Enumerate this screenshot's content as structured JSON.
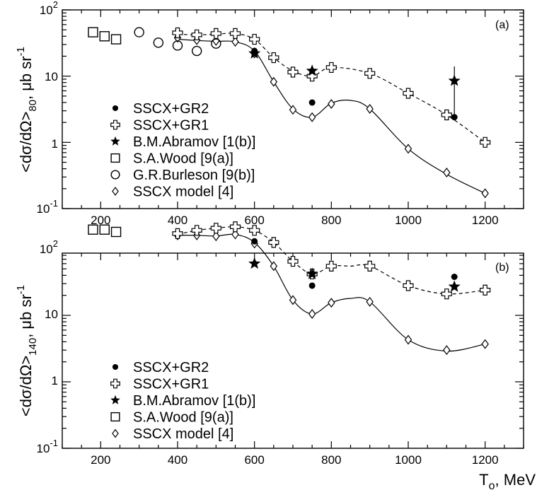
{
  "chart_data": [
    {
      "type": "scatter",
      "panel_label": "(a)",
      "ylabel": "<dσ/dΩ>",
      "ylabel_subscript": "80",
      "ylabel_unit": ", μb sr",
      "ylabel_unit_superscript": "-1",
      "xlabel": "",
      "xlim": [
        100,
        1300
      ],
      "ylim": [
        0.1,
        100
      ],
      "yscale": "log",
      "x_ticks": [
        "200",
        "400",
        "600",
        "800",
        "1000",
        "1200"
      ],
      "y_ticks": [
        {
          "base": "10",
          "exp": "-1"
        },
        {
          "base": "1",
          "exp": ""
        },
        {
          "base": "10",
          "exp": ""
        },
        {
          "base": "10",
          "exp": "2"
        }
      ],
      "grid": false,
      "legend_position": "left",
      "series": [
        {
          "name": "SSCX+GR2",
          "marker": "filled-circle",
          "points": [
            [
              600,
              24
            ],
            [
              750,
              4
            ],
            [
              1120,
              2.4
            ]
          ]
        },
        {
          "name": "SSCX+GR1",
          "marker": "open-cross",
          "points": [
            [
              400,
              45
            ],
            [
              450,
              42
            ],
            [
              500,
              44
            ],
            [
              550,
              44
            ],
            [
              600,
              36
            ],
            [
              650,
              19
            ],
            [
              700,
              11.5
            ],
            [
              750,
              10
            ],
            [
              800,
              13.5
            ],
            [
              900,
              11
            ],
            [
              1000,
              5.5
            ],
            [
              1100,
              2.6
            ],
            [
              1200,
              1.0
            ]
          ]
        },
        {
          "name": "B.M.Abramov [1(b)]",
          "marker": "star",
          "points": [
            [
              600,
              22
            ],
            [
              750,
              12
            ],
            [
              1120,
              8.5
            ]
          ],
          "error_bars": [
            null,
            null,
            [
              2.4,
              14
            ]
          ]
        },
        {
          "name": "S.A.Wood [9(a)]",
          "marker": "open-square",
          "points": [
            [
              180,
              46
            ],
            [
              210,
              40
            ],
            [
              240,
              36
            ]
          ]
        },
        {
          "name": "G.R.Burleson [9(b)]",
          "marker": "open-circle",
          "points": [
            [
              300,
              46
            ],
            [
              350,
              32
            ],
            [
              400,
              29
            ],
            [
              450,
              24
            ],
            [
              500,
              31
            ]
          ]
        },
        {
          "name": "SSCX model [4]",
          "marker": "open-diamond",
          "points": [
            [
              400,
              38
            ],
            [
              450,
              35
            ],
            [
              500,
              34
            ],
            [
              550,
              33
            ],
            [
              600,
              22
            ],
            [
              650,
              8.2
            ],
            [
              700,
              3.1
            ],
            [
              750,
              2.4
            ],
            [
              800,
              3.8
            ],
            [
              900,
              3.2
            ],
            [
              1000,
              0.8
            ],
            [
              1100,
              0.35
            ],
            [
              1200,
              0.17
            ]
          ]
        }
      ],
      "curves": [
        {
          "style": "solid",
          "points": [
            [
              400,
              36
            ],
            [
              450,
              34.5
            ],
            [
              500,
              33.5
            ],
            [
              550,
              33
            ],
            [
              600,
              24
            ],
            [
              650,
              8.2
            ],
            [
              700,
              3.2
            ],
            [
              750,
              2.4
            ],
            [
              800,
              3.9
            ],
            [
              850,
              4.3
            ],
            [
              900,
              3.2
            ],
            [
              1000,
              0.8
            ],
            [
              1100,
              0.33
            ],
            [
              1200,
              0.17
            ]
          ]
        },
        {
          "style": "dashed",
          "points": [
            [
              400,
              43
            ],
            [
              450,
              42
            ],
            [
              500,
              43
            ],
            [
              550,
              44
            ],
            [
              600,
              36
            ],
            [
              650,
              19
            ],
            [
              700,
              12
            ],
            [
              750,
              10
            ],
            [
              800,
              13.5
            ],
            [
              900,
              11
            ],
            [
              1000,
              5.5
            ],
            [
              1100,
              2.6
            ],
            [
              1200,
              1.0
            ]
          ]
        }
      ]
    },
    {
      "type": "scatter",
      "panel_label": "(b)",
      "ylabel": "<dσ/dΩ>",
      "ylabel_subscript": "140",
      "ylabel_unit": ", μb sr",
      "ylabel_unit_superscript": "-1",
      "xlabel": "T",
      "xlabel_subscript": "o",
      "xlabel_unit": ", MeV",
      "xlim": [
        100,
        1300
      ],
      "ylim": [
        0.1,
        300
      ],
      "yscale": "log",
      "x_ticks": [
        "200",
        "400",
        "600",
        "800",
        "1000",
        "1200"
      ],
      "y_ticks": [
        {
          "base": "10",
          "exp": "-1"
        },
        {
          "base": "1",
          "exp": ""
        },
        {
          "base": "10",
          "exp": ""
        },
        {
          "base": "10",
          "exp": "2"
        }
      ],
      "grid": false,
      "legend_position": "left",
      "series": [
        {
          "name": "SSCX+GR2",
          "marker": "filled-circle",
          "points": [
            [
              600,
              130
            ],
            [
              750,
              28
            ],
            [
              1120,
              38
            ]
          ]
        },
        {
          "name": "SSCX+GR1",
          "marker": "open-cross",
          "points": [
            [
              400,
              170
            ],
            [
              450,
              190
            ],
            [
              500,
              205
            ],
            [
              550,
              215
            ],
            [
              600,
              190
            ],
            [
              650,
              125
            ],
            [
              700,
              65
            ],
            [
              750,
              42
            ],
            [
              800,
              55
            ],
            [
              900,
              55
            ],
            [
              1000,
              28
            ],
            [
              1100,
              21
            ],
            [
              1200,
              24
            ]
          ]
        },
        {
          "name": "B.M.Abramov [1(b)]",
          "marker": "star",
          "points": [
            [
              600,
              60
            ],
            [
              750,
              42
            ],
            [
              1120,
              27
            ]
          ]
        },
        {
          "name": "S.A.Wood [9(a)]",
          "marker": "open-square",
          "points": [
            [
              180,
              195
            ],
            [
              210,
              195
            ],
            [
              240,
              180
            ]
          ]
        },
        {
          "name": "SSCX model [4]",
          "marker": "open-diamond",
          "points": [
            [
              400,
              160
            ],
            [
              450,
              160
            ],
            [
              500,
              155
            ],
            [
              550,
              165
            ],
            [
              600,
              120
            ],
            [
              650,
              55
            ],
            [
              700,
              17
            ],
            [
              750,
              10.5
            ],
            [
              800,
              15.5
            ],
            [
              900,
              16
            ],
            [
              1000,
              4.3
            ],
            [
              1100,
              3.0
            ],
            [
              1200,
              3.7
            ]
          ]
        }
      ],
      "curves": [
        {
          "style": "solid",
          "points": [
            [
              400,
              160
            ],
            [
              450,
              160
            ],
            [
              500,
              156
            ],
            [
              550,
              165
            ],
            [
              600,
              125
            ],
            [
              650,
              55
            ],
            [
              700,
              17
            ],
            [
              750,
              10.5
            ],
            [
              800,
              15.5
            ],
            [
              850,
              18
            ],
            [
              900,
              16
            ],
            [
              1000,
              4.3
            ],
            [
              1100,
              2.9
            ],
            [
              1200,
              3.7
            ]
          ]
        },
        {
          "style": "dashed",
          "points": [
            [
              400,
              165
            ],
            [
              450,
              190
            ],
            [
              500,
              205
            ],
            [
              550,
              215
            ],
            [
              600,
              190
            ],
            [
              650,
              125
            ],
            [
              700,
              65
            ],
            [
              750,
              42
            ],
            [
              800,
              55
            ],
            [
              850,
              55
            ],
            [
              900,
              55
            ],
            [
              1000,
              28
            ],
            [
              1100,
              21
            ],
            [
              1200,
              24
            ]
          ]
        }
      ]
    }
  ]
}
